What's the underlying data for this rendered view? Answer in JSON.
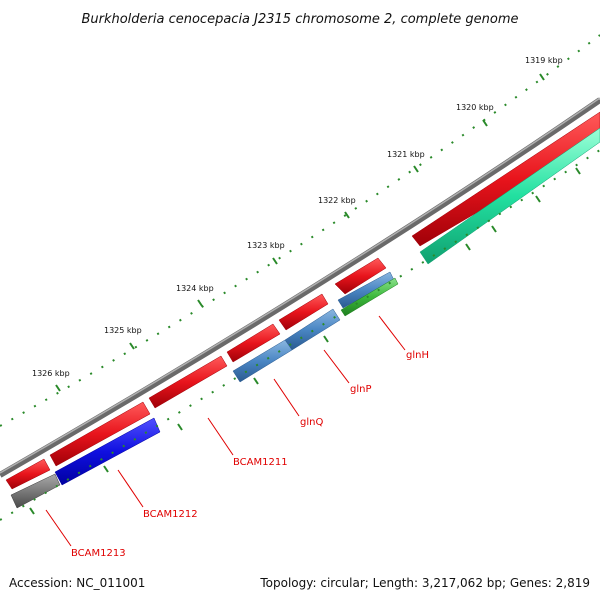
{
  "title": "Burkholderia cenocepacia J2315 chromosome 2, complete genome",
  "accession": "Accession: NC_011001",
  "summary": "Topology: circular; Length: 3,217,062 bp; Genes: 2,819",
  "tick_labels": [
    "1319 kbp",
    "1320 kbp",
    "1321 kbp",
    "1322 kbp",
    "1323 kbp",
    "1324 kbp",
    "1325 kbp",
    "1326 kbp"
  ],
  "gene_labels": [
    "glnH",
    "glnP",
    "glnQ",
    "BCAM1211",
    "BCAM1212",
    "BCAM1213"
  ],
  "colors": {
    "backbone": "#8a8a8a",
    "cds_reverse": "#e8141c",
    "glnH": "#3cb83c",
    "glnP": "#4a86c4",
    "glnQ": "#4a86c4",
    "BCAM1212": "#1010e0",
    "BCAM1213": "#6a6a6a",
    "right_gene": "#22e0a0",
    "tick": "#2a8a2a",
    "label_line": "#e00000"
  }
}
